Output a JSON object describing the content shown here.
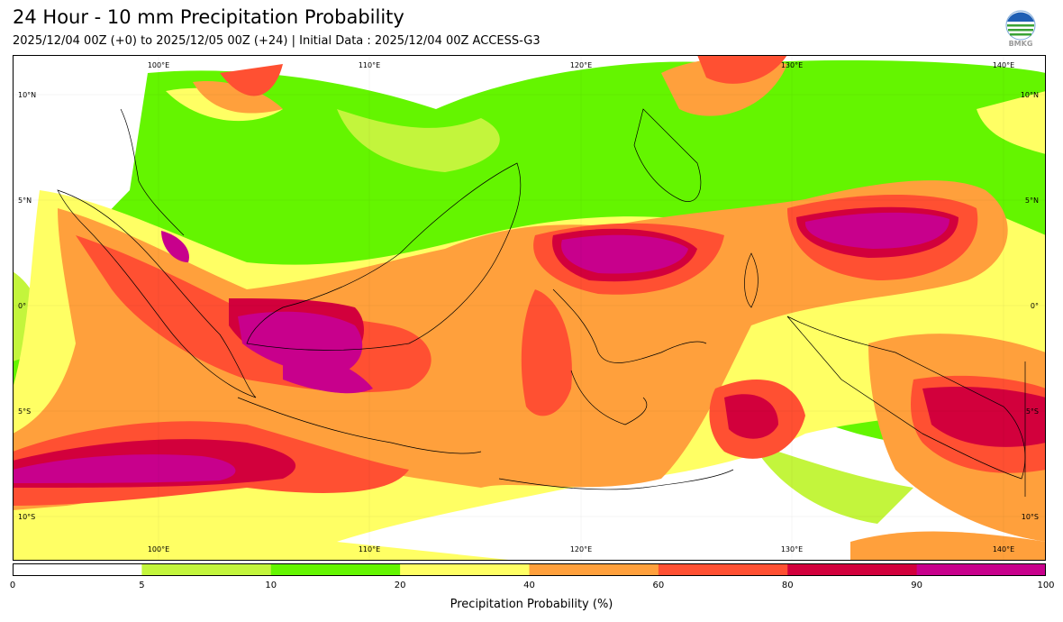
{
  "header": {
    "title": "24 Hour - 10 mm Precipitation Probability",
    "subtitle": "2025/12/04 00Z (+0) to 2025/12/05 00Z (+24) | Initial Data : 2025/12/04 00Z ACCESS-G3",
    "logo_text": "BMKG"
  },
  "map": {
    "lon_labels": [
      "100°E",
      "110°E",
      "120°E",
      "130°E",
      "140°E"
    ],
    "lat_labels": [
      "10°N",
      "5°N",
      "0°",
      "5°S",
      "10°S"
    ]
  },
  "colorbar": {
    "title": "Precipitation Probability (%)",
    "ticks": [
      "0",
      "5",
      "10",
      "20",
      "40",
      "60",
      "80",
      "90",
      "100"
    ],
    "bins": [
      {
        "range": "0-5",
        "color": "#ffffff"
      },
      {
        "range": "5-10",
        "color": "#c3f53c"
      },
      {
        "range": "10-20",
        "color": "#64f500"
      },
      {
        "range": "20-40",
        "color": "#ffff64"
      },
      {
        "range": "40-60",
        "color": "#ffa03c"
      },
      {
        "range": "60-80",
        "color": "#ff5032"
      },
      {
        "range": "80-90",
        "color": "#d2003c"
      },
      {
        "range": "90-100",
        "color": "#c8008c"
      }
    ]
  }
}
